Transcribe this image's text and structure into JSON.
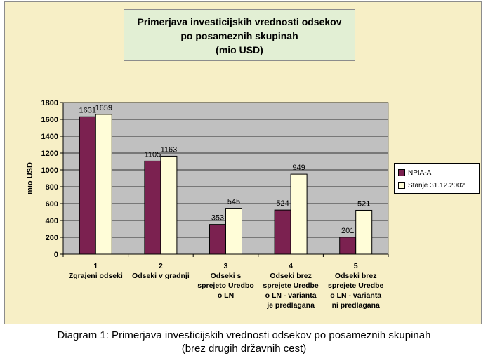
{
  "chart_data": {
    "type": "bar",
    "title_lines": [
      "Primerjava investicijskih vrednosti odsekov",
      "po posameznih skupinah",
      "(mio USD)"
    ],
    "ylabel": "mio USD",
    "ylim": [
      0,
      1800
    ],
    "yticks": [
      0,
      200,
      400,
      600,
      800,
      1000,
      1200,
      1400,
      1600,
      1800
    ],
    "grid": true,
    "legend_position": "right",
    "categories": [
      [
        "1",
        "Zgrajeni odseki"
      ],
      [
        "2",
        "Odseki v gradnji"
      ],
      [
        "3",
        "Odseki s",
        "sprejeto Uredbo",
        "o LN"
      ],
      [
        "4",
        "Odseki brez",
        "sprejete Uredbe",
        "o LN - varianta",
        "je predlagana"
      ],
      [
        "5",
        "Odseki brez",
        "sprejete Uredbe",
        "o LN - varianta",
        "ni predlagana"
      ]
    ],
    "series": [
      {
        "name": "NPIA-A",
        "color": "#7b2150",
        "values": [
          1631,
          1105,
          353,
          524,
          201
        ]
      },
      {
        "name": "Stanje 31.12.2002",
        "color": "#fffdd8",
        "values": [
          1659,
          1163,
          545,
          949,
          521
        ]
      }
    ],
    "plot_background": "#c0c0c0"
  },
  "caption": {
    "line1": "Diagram 1: Primerjava investicijskih vrednosti odsekov po posameznih skupinah",
    "line2": "(brez drugih državnih cest)"
  }
}
